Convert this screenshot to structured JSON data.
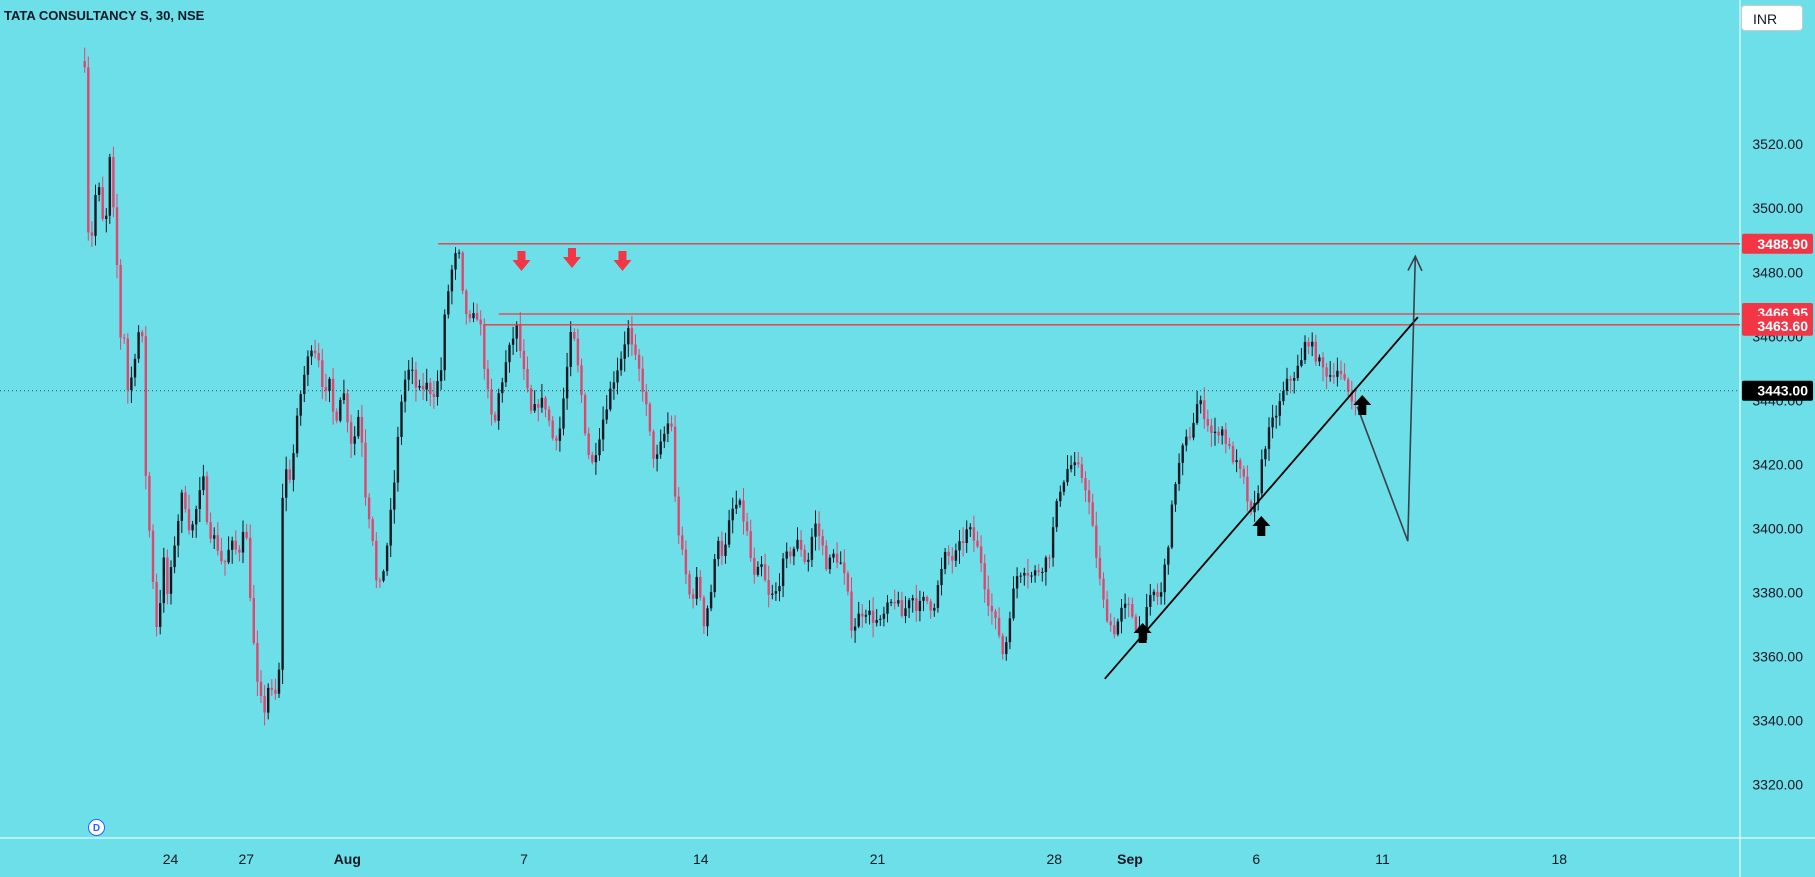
{
  "header": {
    "title": "TATA CONSULTANCY S, 30, NSE",
    "currency_label": "INR",
    "timeframe_badge": "D"
  },
  "chart_data": {
    "type": "candlestick",
    "symbol": "TATA CONSULTANCY S",
    "interval": "30",
    "exchange": "NSE",
    "currency": "INR",
    "ylim": [
      3312,
      3546
    ],
    "y_ticks": [
      "3520.00",
      "3500.00",
      "3480.00",
      "3460.00",
      "3440.00",
      "3420.00",
      "3400.00",
      "3380.00",
      "3360.00",
      "3340.00",
      "3320.00"
    ],
    "y_tick_values": [
      3520,
      3500,
      3480,
      3460,
      3440,
      3420,
      3400,
      3380,
      3360,
      3340,
      3320
    ],
    "x_ticks": [
      {
        "label": "24",
        "day": 24,
        "bold": false
      },
      {
        "label": "27",
        "day": 27,
        "bold": false
      },
      {
        "label": "Aug",
        "day": 31,
        "bold": true
      },
      {
        "label": "7",
        "day": 38,
        "bold": false
      },
      {
        "label": "14",
        "day": 45,
        "bold": false
      },
      {
        "label": "21",
        "day": 52,
        "bold": false
      },
      {
        "label": "28",
        "day": 59,
        "bold": false
      },
      {
        "label": "Sep",
        "day": 62,
        "bold": true
      },
      {
        "label": "6",
        "day": 67,
        "bold": false
      },
      {
        "label": "11",
        "day": 72,
        "bold": false
      },
      {
        "label": "18",
        "day": 79,
        "bold": false
      }
    ],
    "x_unit": "trading day (Jul 21 = 21, Aug 1 = 32 ...)",
    "session_path": [
      [
        20.6,
        3546
      ],
      [
        20.7,
        3500
      ],
      [
        20.8,
        3485
      ],
      [
        21.1,
        3510
      ],
      [
        21.4,
        3490
      ],
      [
        21.6,
        3515
      ],
      [
        21.9,
        3480
      ],
      [
        22.0,
        3455
      ],
      [
        22.1,
        3475
      ],
      [
        22.25,
        3442
      ],
      [
        22.5,
        3448
      ],
      [
        22.7,
        3462
      ],
      [
        22.9,
        3458
      ],
      [
        23.0,
        3420
      ],
      [
        23.2,
        3395
      ],
      [
        23.5,
        3365
      ],
      [
        23.7,
        3392
      ],
      [
        23.9,
        3378
      ],
      [
        24.2,
        3398
      ],
      [
        24.5,
        3412
      ],
      [
        24.8,
        3398
      ],
      [
        25.0,
        3405
      ],
      [
        25.3,
        3415
      ],
      [
        25.5,
        3400
      ],
      [
        25.8,
        3396
      ],
      [
        26.1,
        3388
      ],
      [
        26.4,
        3395
      ],
      [
        26.7,
        3392
      ],
      [
        26.9,
        3402
      ],
      [
        27.0,
        3398
      ],
      [
        27.4,
        3352
      ],
      [
        27.7,
        3342
      ],
      [
        27.9,
        3352
      ],
      [
        28.1,
        3345
      ],
      [
        28.3,
        3355
      ],
      [
        28.35,
        3395
      ],
      [
        28.5,
        3420
      ],
      [
        28.7,
        3415
      ],
      [
        28.9,
        3425
      ],
      [
        29.1,
        3440
      ],
      [
        29.3,
        3448
      ],
      [
        29.6,
        3458
      ],
      [
        29.9,
        3453
      ],
      [
        30.1,
        3440
      ],
      [
        30.3,
        3445
      ],
      [
        30.5,
        3432
      ],
      [
        30.8,
        3445
      ],
      [
        31.2,
        3425
      ],
      [
        31.5,
        3438
      ],
      [
        31.7,
        3412
      ],
      [
        32.0,
        3398
      ],
      [
        32.2,
        3378
      ],
      [
        32.5,
        3390
      ],
      [
        32.7,
        3403
      ],
      [
        32.8,
        3409
      ],
      [
        33.2,
        3445
      ],
      [
        33.5,
        3450
      ],
      [
        33.8,
        3442
      ],
      [
        34.1,
        3445
      ],
      [
        34.4,
        3442
      ],
      [
        34.7,
        3448
      ],
      [
        34.9,
        3470
      ],
      [
        35.2,
        3483
      ],
      [
        35.4,
        3487
      ],
      [
        35.6,
        3470
      ],
      [
        35.9,
        3463
      ],
      [
        36.1,
        3468
      ],
      [
        36.3,
        3462
      ],
      [
        36.5,
        3445
      ],
      [
        36.8,
        3430
      ],
      [
        37.0,
        3442
      ],
      [
        37.3,
        3452
      ],
      [
        37.5,
        3458
      ],
      [
        37.7,
        3463
      ],
      [
        38.0,
        3448
      ],
      [
        38.3,
        3435
      ],
      [
        38.6,
        3440
      ],
      [
        38.9,
        3438
      ],
      [
        39.1,
        3428
      ],
      [
        39.4,
        3430
      ],
      [
        39.6,
        3443
      ],
      [
        39.9,
        3463
      ],
      [
        40.1,
        3452
      ],
      [
        40.3,
        3440
      ],
      [
        40.5,
        3425
      ],
      [
        40.7,
        3420
      ],
      [
        41.0,
        3430
      ],
      [
        41.3,
        3440
      ],
      [
        41.6,
        3448
      ],
      [
        41.9,
        3455
      ],
      [
        42.1,
        3463
      ],
      [
        42.3,
        3455
      ],
      [
        42.6,
        3448
      ],
      [
        42.8,
        3440
      ],
      [
        43.0,
        3428
      ],
      [
        43.2,
        3420
      ],
      [
        43.5,
        3428
      ],
      [
        43.8,
        3435
      ],
      [
        43.9,
        3428
      ],
      [
        44.0,
        3405
      ],
      [
        44.3,
        3390
      ],
      [
        44.6,
        3377
      ],
      [
        44.9,
        3385
      ],
      [
        45.1,
        3370
      ],
      [
        45.4,
        3380
      ],
      [
        45.7,
        3398
      ],
      [
        45.9,
        3390
      ],
      [
        46.2,
        3405
      ],
      [
        46.5,
        3408
      ],
      [
        46.8,
        3400
      ],
      [
        47.1,
        3384
      ],
      [
        47.4,
        3388
      ],
      [
        47.7,
        3378
      ],
      [
        48.0,
        3380
      ],
      [
        48.3,
        3390
      ],
      [
        48.6,
        3393
      ],
      [
        48.9,
        3396
      ],
      [
        49.2,
        3388
      ],
      [
        49.5,
        3402
      ],
      [
        49.8,
        3395
      ],
      [
        50.0,
        3388
      ],
      [
        50.3,
        3392
      ],
      [
        50.6,
        3388
      ],
      [
        50.8,
        3380
      ],
      [
        51.0,
        3368
      ],
      [
        51.2,
        3372
      ],
      [
        51.5,
        3375
      ],
      [
        51.8,
        3372
      ],
      [
        52.1,
        3370
      ],
      [
        52.4,
        3375
      ],
      [
        52.7,
        3378
      ],
      [
        53.0,
        3372
      ],
      [
        53.3,
        3380
      ],
      [
        53.6,
        3375
      ],
      [
        53.9,
        3378
      ],
      [
        54.2,
        3375
      ],
      [
        54.4,
        3382
      ],
      [
        54.7,
        3392
      ],
      [
        55.0,
        3390
      ],
      [
        55.3,
        3395
      ],
      [
        55.6,
        3400
      ],
      [
        55.9,
        3395
      ],
      [
        56.1,
        3390
      ],
      [
        56.3,
        3380
      ],
      [
        56.6,
        3372
      ],
      [
        56.9,
        3365
      ],
      [
        57.0,
        3358
      ],
      [
        57.2,
        3372
      ],
      [
        57.5,
        3385
      ],
      [
        57.8,
        3388
      ],
      [
        58.1,
        3385
      ],
      [
        58.5,
        3388
      ],
      [
        58.8,
        3392
      ],
      [
        59.2,
        3412
      ],
      [
        59.6,
        3420
      ],
      [
        60.0,
        3418
      ],
      [
        60.3,
        3412
      ],
      [
        60.6,
        3395
      ],
      [
        60.9,
        3378
      ],
      [
        61.2,
        3370
      ],
      [
        61.4,
        3368
      ],
      [
        61.7,
        3375
      ],
      [
        62.0,
        3375
      ],
      [
        62.3,
        3368
      ],
      [
        62.6,
        3372
      ],
      [
        62.9,
        3380
      ],
      [
        63.2,
        3378
      ],
      [
        63.5,
        3395
      ],
      [
        63.8,
        3415
      ],
      [
        64.1,
        3425
      ],
      [
        64.4,
        3430
      ],
      [
        64.7,
        3440
      ],
      [
        65.0,
        3435
      ],
      [
        65.3,
        3428
      ],
      [
        65.6,
        3432
      ],
      [
        65.9,
        3425
      ],
      [
        66.2,
        3420
      ],
      [
        66.5,
        3415
      ],
      [
        66.8,
        3403
      ],
      [
        67.0,
        3408
      ],
      [
        67.3,
        3425
      ],
      [
        67.6,
        3432
      ],
      [
        67.9,
        3438
      ],
      [
        68.2,
        3445
      ],
      [
        68.5,
        3448
      ],
      [
        68.8,
        3452
      ],
      [
        69.0,
        3460
      ],
      [
        69.3,
        3455
      ],
      [
        69.6,
        3450
      ],
      [
        69.9,
        3448
      ],
      [
        70.2,
        3450
      ],
      [
        70.5,
        3445
      ],
      [
        70.8,
        3440
      ],
      [
        71.0,
        3442
      ]
    ],
    "horizontal_levels": [
      {
        "value": 3488.9,
        "label": "3488.90",
        "color": "#f23645",
        "from_day": 34.6
      },
      {
        "value": 3466.95,
        "label": "3466.95",
        "color": "#f23645",
        "from_day": 37.0
      },
      {
        "value": 3463.6,
        "label": "3463.60",
        "color": "#f23645",
        "from_day": 36.4
      }
    ],
    "last_price": {
      "value": 3443.0,
      "label": "3443.00"
    },
    "trendline": [
      [
        61.0,
        3353
      ],
      [
        73.4,
        3466
      ]
    ],
    "projection_path": [
      [
        71.0,
        3438
      ],
      [
        73.0,
        3396
      ],
      [
        73.3,
        3485
      ]
    ],
    "resistance_touch_markers_days": [
      37.9,
      39.9,
      41.9
    ],
    "support_bounce_markers_days": [
      62.5,
      67.2,
      71.2
    ],
    "colors": {
      "background": "#6ddfe8",
      "candle_up": "#131722",
      "candle_down": "#e0456e",
      "level_line": "#f23645",
      "price_label_bg": "#f23645",
      "last_price_bg": "#000000",
      "arrow_down": "#f23645",
      "arrow_up": "#000000",
      "trendline": "#000000",
      "projection": "#3a3f4a"
    }
  }
}
